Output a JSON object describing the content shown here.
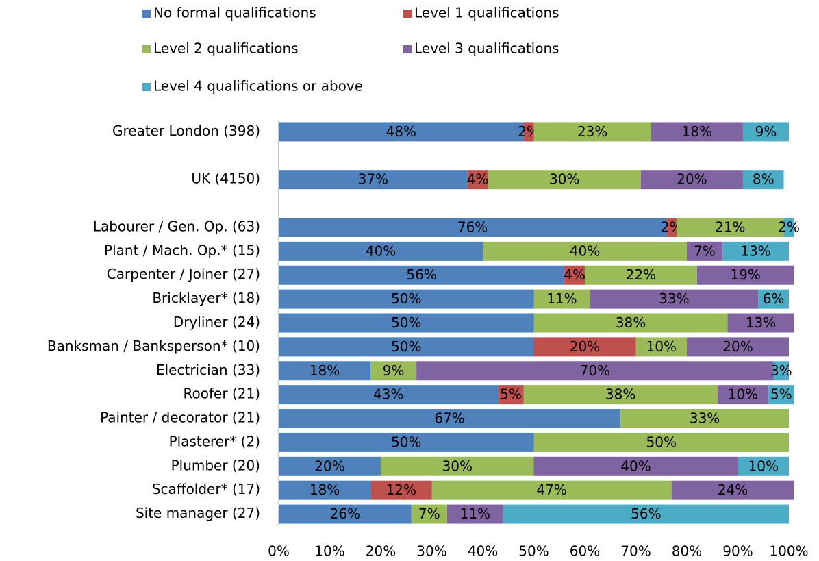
{
  "chart_data": {
    "type": "stacked_bar_horizontal",
    "categories": [
      "Greater London (398)",
      null,
      "UK (4150)",
      null,
      "Labourer / Gen. Op. (63)",
      "Plant / Mach. Op.* (15)",
      "Carpenter / Joiner (27)",
      "Bricklayer* (18)",
      "Dryliner (24)",
      "Banksman / Banksperson* (10)",
      "Electrician (33)",
      "Roofer (21)",
      "Painter / decorator (21)",
      "Plasterer* (2)",
      "Plumber (20)",
      "Scaffolder* (17)",
      "Site manager (27)"
    ],
    "series": [
      {
        "name": "No formal qualifications",
        "color": "#4f81bd",
        "values": [
          48,
          null,
          37,
          null,
          76,
          40,
          56,
          50,
          50,
          50,
          18,
          43,
          67,
          50,
          20,
          18,
          26
        ],
        "value_labels": [
          "48%",
          null,
          "37%",
          null,
          "76%",
          "40%",
          "56%",
          "50%",
          "50%",
          "50%",
          "18%",
          "43%",
          "67%",
          "50%",
          "20%",
          "18%",
          "26%"
        ]
      },
      {
        "name": "Level 1 qualifications",
        "color": "#c0504d",
        "values": [
          2,
          null,
          4,
          null,
          2,
          null,
          4,
          null,
          null,
          20,
          null,
          5,
          null,
          null,
          null,
          12,
          null
        ],
        "value_labels": [
          "2%",
          null,
          "4%",
          null,
          "2%",
          null,
          "4%",
          null,
          null,
          "20%",
          null,
          "5%",
          null,
          null,
          null,
          "12%",
          null
        ]
      },
      {
        "name": "Level 2 qualifications",
        "color": "#9bbb59",
        "values": [
          23,
          null,
          30,
          null,
          21,
          40,
          22,
          11,
          38,
          10,
          9,
          38,
          33,
          50,
          30,
          47,
          7
        ],
        "value_labels": [
          "23%",
          null,
          "30%",
          null,
          "21%",
          "40%",
          "22%",
          "11%",
          "38%",
          "10%",
          "9%",
          "38%",
          "33%",
          "50%",
          "30%",
          "47%",
          "7%"
        ]
      },
      {
        "name": "Level 3 qualifications",
        "color": "#8064a2",
        "values": [
          18,
          null,
          20,
          null,
          null,
          7,
          19,
          33,
          13,
          20,
          70,
          10,
          null,
          null,
          40,
          24,
          11
        ],
        "value_labels": [
          "18%",
          null,
          "20%",
          null,
          null,
          "7%",
          "19%",
          "33%",
          "13%",
          "20%",
          "70%",
          "10%",
          null,
          null,
          "40%",
          "24%",
          "11%"
        ]
      },
      {
        "name": "Level 4 qualifications or above",
        "color": "#4bacc6",
        "values": [
          9,
          null,
          8,
          null,
          2,
          13,
          null,
          6,
          null,
          null,
          3,
          5,
          null,
          null,
          10,
          null,
          56
        ],
        "value_labels": [
          "9%",
          null,
          "8%",
          null,
          "2%",
          "13%",
          null,
          "6%",
          null,
          null,
          "3%",
          "5%",
          null,
          null,
          "10%",
          null,
          "56%"
        ]
      }
    ],
    "xlim": [
      0,
      100
    ],
    "xticks": [
      {
        "value": 0,
        "label": "0%"
      },
      {
        "value": 10,
        "label": "10%"
      },
      {
        "value": 20,
        "label": "20%"
      },
      {
        "value": 30,
        "label": "30%"
      },
      {
        "value": 40,
        "label": "40%"
      },
      {
        "value": 50,
        "label": "50%"
      },
      {
        "value": 60,
        "label": "60%"
      },
      {
        "value": 70,
        "label": "70%"
      },
      {
        "value": 80,
        "label": "80%"
      },
      {
        "value": 90,
        "label": "90%"
      },
      {
        "value": 100,
        "label": "100%"
      }
    ],
    "legend": "top"
  }
}
